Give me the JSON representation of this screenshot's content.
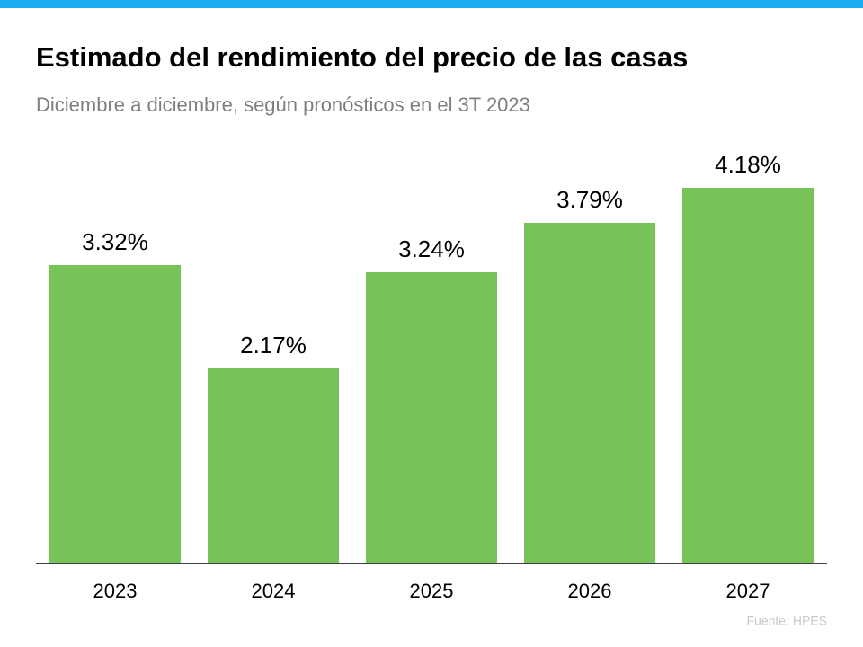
{
  "chart_data": {
    "type": "bar",
    "title": "Estimado del rendimiento del precio de las casas",
    "subtitle": "Diciembre a diciembre, según pronósticos en el 3T 2023",
    "source": "Fuente:  HPES",
    "categories": [
      "2023",
      "2024",
      "2025",
      "2026",
      "2027"
    ],
    "values": [
      3.32,
      2.17,
      3.24,
      3.79,
      4.18
    ],
    "value_labels": [
      "3.32%",
      "2.17%",
      "3.24%",
      "3.79%",
      "4.18%"
    ],
    "color": "#77c35a"
  }
}
